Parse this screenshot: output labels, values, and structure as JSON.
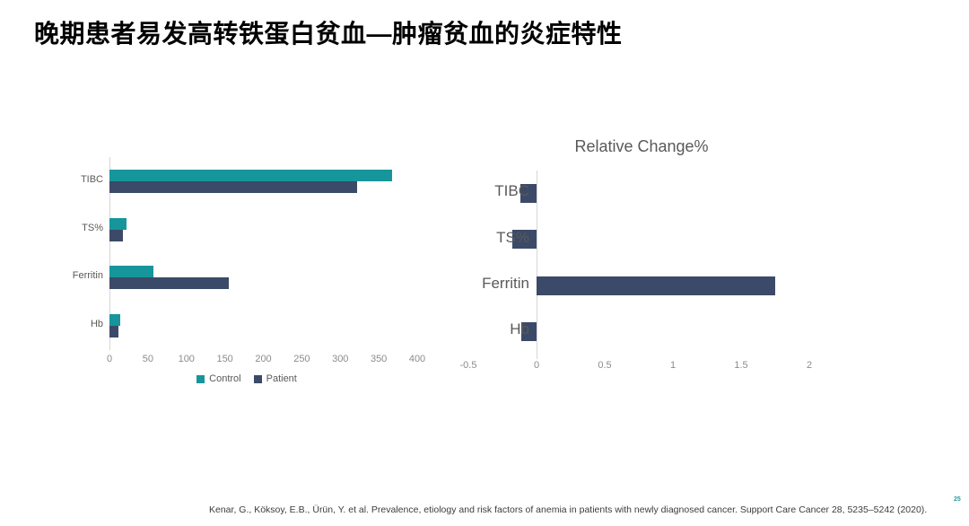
{
  "slide": {
    "title": "晚期患者易发高转铁蛋白贫血—肿瘤贫血的炎症特性"
  },
  "footer": {
    "citation": "Kenar, G., Köksoy, E.B., Ürün, Y. et al. Prevalence, etiology and risk factors of anemia in patients with newly diagnosed cancer. Support Care Cancer 28, 5235–5242 (2020).",
    "page_number": "25"
  },
  "colors": {
    "control": "#16969A",
    "patient": "#3B4A68",
    "axis_line": "#D6D6D6",
    "tick_label": "#8C8C8C",
    "category_label": "#595959",
    "page_number_accent": "#2A9A9B"
  },
  "chart_data": [
    {
      "id": "lab-values",
      "type": "bar",
      "orientation": "horizontal",
      "title": "",
      "categories": [
        "TIBC",
        "TS%",
        "Ferritin",
        "Hb"
      ],
      "series": [
        {
          "name": "Control",
          "color": "#16969A",
          "values": [
            367,
            22,
            57,
            14
          ]
        },
        {
          "name": "Patient",
          "color": "#3B4A68",
          "values": [
            322,
            17,
            155,
            12
          ]
        }
      ],
      "xlim": [
        0,
        400
      ],
      "xticks": [
        "0",
        "50",
        "100",
        "150",
        "200",
        "250",
        "300",
        "350",
        "400"
      ],
      "legend_position": "bottom",
      "grid": false
    },
    {
      "id": "relative-change",
      "type": "bar",
      "orientation": "horizontal",
      "title": "Relative Change%",
      "categories": [
        "TIBC",
        "TS%",
        "Ferritin",
        "Hb"
      ],
      "series": [
        {
          "name": "Relative Change%",
          "color": "#3B4A68",
          "values": [
            -0.12,
            -0.18,
            1.75,
            -0.11
          ]
        }
      ],
      "xlim": [
        -0.5,
        2
      ],
      "xticks": [
        "-0.5",
        "0",
        "0.5",
        "1",
        "1.5",
        "2"
      ],
      "legend_position": "none",
      "grid": false
    }
  ]
}
